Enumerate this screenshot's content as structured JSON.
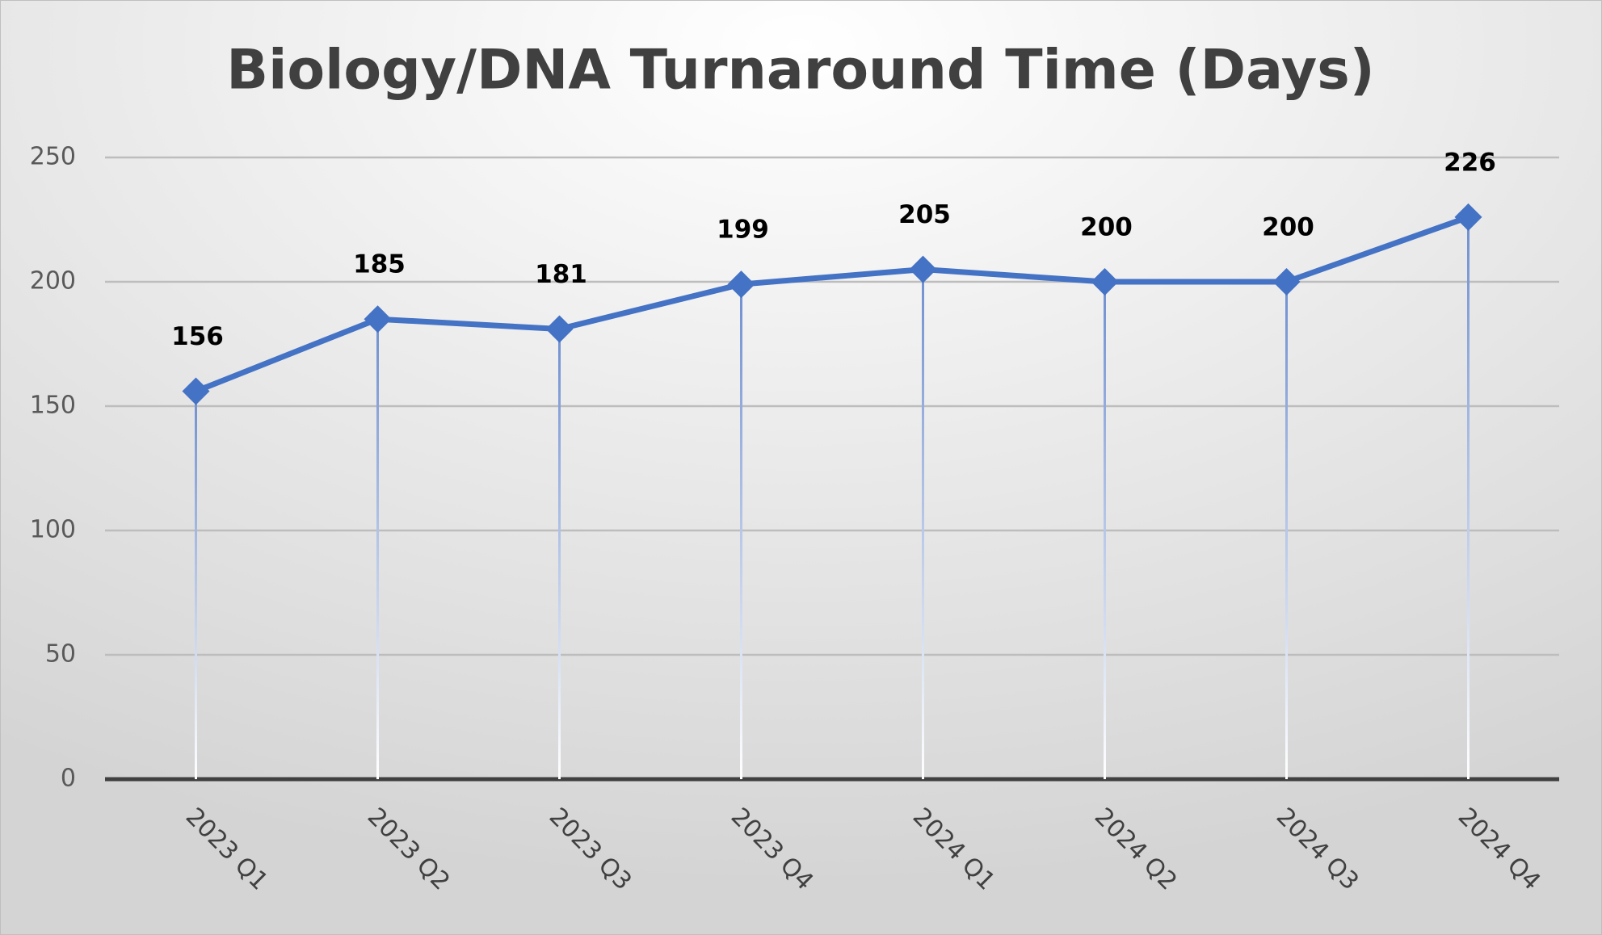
{
  "chart_data": {
    "type": "line",
    "title": "Biology/DNA Turnaround Time (Days)",
    "categories": [
      "2023 Q1",
      "2023 Q2",
      "2023 Q3",
      "2023 Q4",
      "2024 Q1",
      "2024 Q2",
      "2024 Q3",
      "2024 Q4"
    ],
    "values": [
      156,
      185,
      181,
      199,
      205,
      200,
      200,
      226
    ],
    "color": "#4472c4",
    "ylim": [
      0,
      250
    ],
    "yticks": [
      0,
      50,
      100,
      150,
      200,
      250
    ],
    "grid": true,
    "drop_lines": true
  }
}
